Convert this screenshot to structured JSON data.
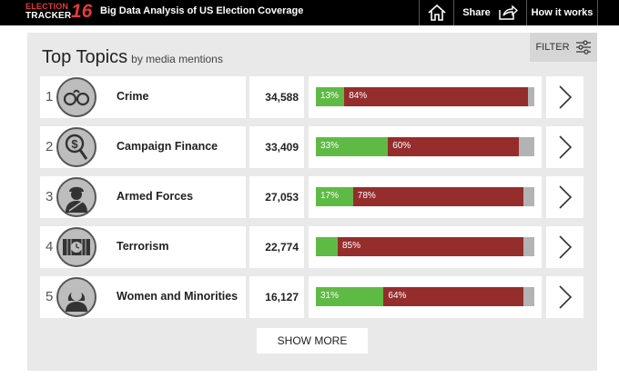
{
  "header": {
    "logo_line1": "ELECTION",
    "logo_line2": "TRACKER",
    "logo_num": "16",
    "title": "Big Data Analysis of US Election Coverage",
    "share_label": "Share",
    "how_label": "How it works"
  },
  "panel": {
    "title": "Top Topics",
    "subtitle": "by media mentions",
    "filter_label": "FILTER",
    "show_more_label": "SHOW MORE"
  },
  "topics": [
    {
      "rank": "1",
      "name": "Crime",
      "count": "34,588",
      "icon": "handcuffs-icon",
      "pos": 13,
      "neg": 84,
      "neu": 3,
      "pos_label": "13%",
      "neg_label": "84%"
    },
    {
      "rank": "2",
      "name": "Campaign Finance",
      "count": "33,409",
      "icon": "dollar-magnifier-icon",
      "pos": 33,
      "neg": 60,
      "neu": 7,
      "pos_label": "33%",
      "neg_label": "60%"
    },
    {
      "rank": "3",
      "name": "Armed Forces",
      "count": "27,053",
      "icon": "soldier-icon",
      "pos": 17,
      "neg": 78,
      "neu": 5,
      "pos_label": "17%",
      "neg_label": "78%"
    },
    {
      "rank": "4",
      "name": "Terrorism",
      "count": "22,774",
      "icon": "bomb-timer-icon",
      "pos": 10,
      "neg": 85,
      "neu": 5,
      "pos_label": "",
      "neg_label": "85%"
    },
    {
      "rank": "5",
      "name": "Women and Minorities",
      "count": "16,127",
      "icon": "woman-icon",
      "pos": 31,
      "neg": 64,
      "neu": 5,
      "pos_label": "31%",
      "neg_label": "64%"
    }
  ],
  "colors": {
    "positive": "#5fba45",
    "negative": "#962d2d",
    "neutral": "#b3b3b3"
  }
}
